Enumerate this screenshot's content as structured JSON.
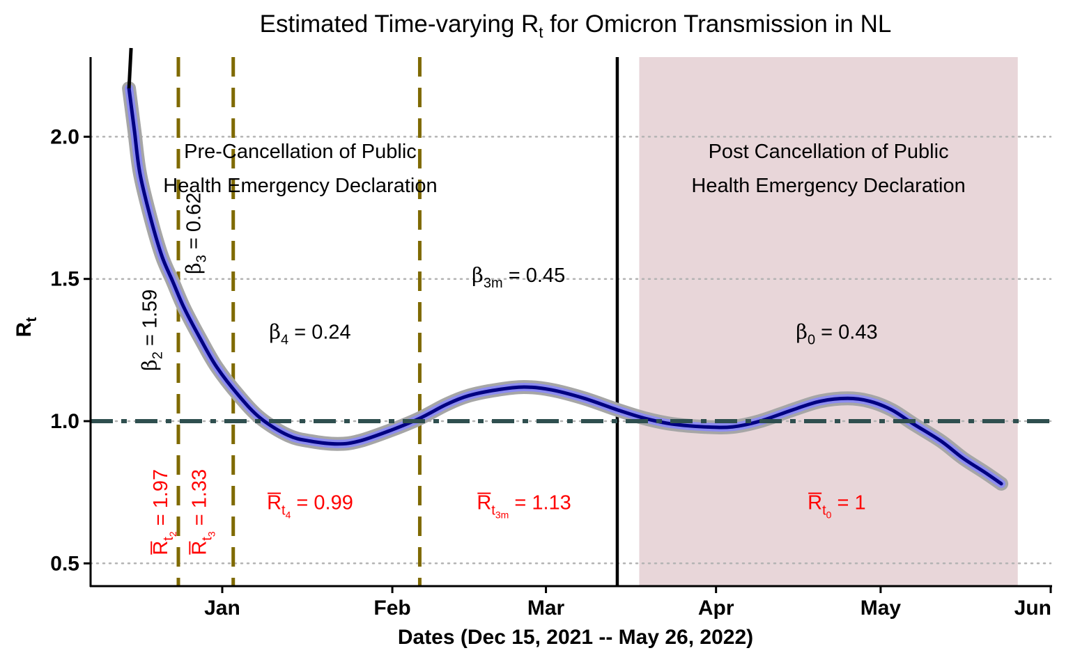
{
  "chart_data": {
    "type": "line",
    "title_main": "Estimated Time-varying  R",
    "title_sub": "t",
    "title_rest": " for Omicron Transmission in NL",
    "xlabel": "Dates (Dec 15, 2021 -- May 26, 2022)",
    "ylabel_main": "R",
    "ylabel_sub": "t",
    "x_axis_type": "date",
    "xlim": [
      "2021-12-08",
      "2022-06-01"
    ],
    "ylim": [
      0.42,
      2.28
    ],
    "x_ticks": [
      {
        "date": "2022-01-01",
        "label": "Jan"
      },
      {
        "date": "2022-02-01",
        "label": "Feb"
      },
      {
        "date": "2022-03-01",
        "label": "Mar"
      },
      {
        "date": "2022-04-01",
        "label": "Apr"
      },
      {
        "date": "2022-05-01",
        "label": "May"
      },
      {
        "date": "2022-06-01",
        "label": "Jun"
      }
    ],
    "y_ticks": [
      {
        "value": 0.5,
        "label": "0.5"
      },
      {
        "value": 1.0,
        "label": "1.0"
      },
      {
        "value": 1.5,
        "label": "1.5"
      },
      {
        "value": 2.0,
        "label": "2.0"
      }
    ],
    "grid": "horizontal dotted",
    "reference_line": {
      "y": 1.0,
      "style": "dash-dot",
      "color": "#2f4f4f"
    },
    "series": [
      {
        "color": "#000080",
        "band_color": "#8c8cf0",
        "points": [
          [
            "2021-12-15",
            2.17
          ],
          [
            "2021-12-16",
            2.02
          ],
          [
            "2021-12-17",
            1.87
          ],
          [
            "2021-12-19",
            1.71
          ],
          [
            "2021-12-21",
            1.58
          ],
          [
            "2021-12-23",
            1.49
          ],
          [
            "2021-12-25",
            1.4
          ],
          [
            "2021-12-28",
            1.29
          ],
          [
            "2021-12-31",
            1.19
          ],
          [
            "2022-01-04",
            1.09
          ],
          [
            "2022-01-08",
            1.01
          ],
          [
            "2022-01-13",
            0.95
          ],
          [
            "2022-01-17",
            0.93
          ],
          [
            "2022-01-22",
            0.92
          ],
          [
            "2022-01-26",
            0.93
          ],
          [
            "2022-02-01",
            0.97
          ],
          [
            "2022-02-06",
            1.01
          ],
          [
            "2022-02-11",
            1.06
          ],
          [
            "2022-02-15",
            1.09
          ],
          [
            "2022-02-20",
            1.11
          ],
          [
            "2022-02-25",
            1.12
          ],
          [
            "2022-03-02",
            1.11
          ],
          [
            "2022-03-08",
            1.08
          ],
          [
            "2022-03-14",
            1.04
          ],
          [
            "2022-03-19",
            1.01
          ],
          [
            "2022-03-24",
            0.99
          ],
          [
            "2022-03-30",
            0.98
          ],
          [
            "2022-04-04",
            0.98
          ],
          [
            "2022-04-09",
            1.0
          ],
          [
            "2022-04-15",
            1.04
          ],
          [
            "2022-04-20",
            1.07
          ],
          [
            "2022-04-25",
            1.08
          ],
          [
            "2022-04-29",
            1.07
          ],
          [
            "2022-05-03",
            1.04
          ],
          [
            "2022-05-07",
            0.99
          ],
          [
            "2022-05-12",
            0.93
          ],
          [
            "2022-05-16",
            0.87
          ],
          [
            "2022-05-20",
            0.82
          ],
          [
            "2022-05-23",
            0.78
          ]
        ]
      }
    ],
    "vertical_lines": [
      {
        "date": "2021-12-24",
        "style": "dashed",
        "color": "#7f6a00"
      },
      {
        "date": "2022-01-03",
        "style": "dashed",
        "color": "#7f6a00"
      },
      {
        "date": "2022-02-06",
        "style": "dashed",
        "color": "#7f6a00"
      },
      {
        "date": "2022-03-14",
        "style": "solid",
        "color": "#000000"
      }
    ],
    "shaded_region": {
      "start": "2022-03-18",
      "end": "2022-05-26",
      "color": "#e8d6d9"
    },
    "region_labels": [
      {
        "line1": "Pre-Cancellation of Public",
        "line2": "Health Emergency Declaration"
      },
      {
        "line1": "Post Cancellation of Public",
        "line2": "Health Emergency Declaration"
      }
    ],
    "beta_annotations": [
      {
        "symbol": "β",
        "sub": "2",
        "text": " = 1.59",
        "date": "2021-12-20",
        "y": 1.32,
        "rotate": true
      },
      {
        "symbol": "β",
        "sub": "3",
        "text": " = 0.62",
        "date": "2021-12-28",
        "y": 1.66,
        "rotate": true
      },
      {
        "symbol": "β",
        "sub": "4",
        "text": " = 0.24",
        "date": "2022-01-17",
        "y": 1.29,
        "rotate": false
      },
      {
        "symbol": "β",
        "sub": "3m",
        "text": " = 0.45",
        "date": "2022-02-24",
        "y": 1.49,
        "rotate": false
      },
      {
        "symbol": "β",
        "sub": "0",
        "text": " = 0.43",
        "date": "2022-04-23",
        "y": 1.29,
        "rotate": false
      }
    ],
    "rbar_annotations": [
      {
        "symbol": "R",
        "sub": "t",
        "subsub": "2",
        "text": " = 1.97",
        "date": "2021-12-22",
        "y": 0.68,
        "rotate": true
      },
      {
        "symbol": "R",
        "sub": "t",
        "subsub": "3",
        "text": " = 1.33",
        "date": "2021-12-29",
        "y": 0.68,
        "rotate": true
      },
      {
        "symbol": "R",
        "sub": "t",
        "subsub": "4",
        "text": " = 0.99",
        "date": "2022-01-17",
        "y": 0.69,
        "rotate": false
      },
      {
        "symbol": "R",
        "sub": "t",
        "subsub": "3m",
        "text": " = 1.13",
        "date": "2022-02-25",
        "y": 0.69,
        "rotate": false
      },
      {
        "symbol": "R",
        "sub": "t",
        "subsub": "0",
        "text": " = 1",
        "date": "2022-04-23",
        "y": 0.69,
        "rotate": false
      }
    ]
  }
}
